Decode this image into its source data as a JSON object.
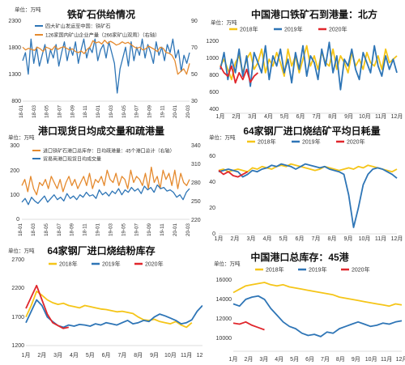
{
  "chart_data": [
    {
      "type": "line",
      "title": "铁矿石供给情况",
      "unit": "单位：万吨",
      "legend": [
        "四大矿山发运至中国：铁矿石",
        "126家国内矿山企业产量（266家矿山双周）（右轴）"
      ],
      "colors": [
        "#2e75b6",
        "#e58a2e"
      ],
      "y_left_ticks": [
        "2300",
        "1800",
        "1300",
        "800"
      ],
      "y_left_range": [
        800,
        2300
      ],
      "y_right_ticks": [
        "90",
        "70",
        "50",
        "30"
      ],
      "y_right_range": [
        30,
        90
      ],
      "x_ticks": [
        "18-01",
        "18-03",
        "18-05",
        "18-07",
        "18-09",
        "18-11",
        "19-01",
        "19-03",
        "19-05",
        "19-07",
        "19-09",
        "19-11",
        "20-01",
        "20-03"
      ],
      "series": [
        {
          "axis": "left",
          "values": [
            1550,
            1700,
            1300,
            1950,
            1500,
            1800,
            1450,
            1650,
            1850,
            1500,
            1750,
            1600,
            1850,
            1450,
            1700,
            1900,
            1550,
            1800,
            1650,
            1900,
            1500,
            1750,
            1950,
            1600,
            1800,
            1700,
            1950,
            1550,
            1750,
            1850,
            1600,
            1900,
            1700,
            1500,
            950,
            1400,
            1600,
            1800,
            1450,
            1900,
            1550,
            1800,
            1650,
            1950,
            1600,
            1850,
            1700,
            1500,
            1900,
            1650,
            1800,
            1550,
            1850,
            1700,
            1950,
            1600,
            1750,
            1350,
            1650,
            1500,
            1700
          ]
        },
        {
          "axis": "left",
          "values": [
            1800,
            1750,
            1780,
            1760,
            1740,
            1800,
            1770,
            1720,
            1800,
            1780,
            1750,
            1820,
            1760,
            1790,
            1810,
            1780,
            1750,
            1770,
            1720,
            1700,
            1730,
            1680,
            1760,
            1800,
            1920,
            1880,
            1900,
            1860,
            1930,
            1870,
            1910,
            1880,
            1840,
            1860,
            1900,
            1870,
            1890,
            1850,
            1810,
            1780,
            1800,
            1750,
            1770,
            1820,
            1790,
            1760,
            1720,
            1800,
            1780,
            1700,
            1690,
            1650,
            1550,
            1300,
            1350,
            1400,
            1300,
            1500
          ]
        }
      ]
    },
    {
      "type": "line",
      "title": "中国港口铁矿石到港量：北方",
      "unit": "单位：万吨",
      "legend": [
        "2018年",
        "2019年",
        "2020年"
      ],
      "colors": [
        "#f5c518",
        "#2e75b6",
        "#e0262c"
      ],
      "y_ticks": [
        "1200",
        "1000",
        "800",
        "600",
        "400"
      ],
      "y_range": [
        300,
        1450
      ],
      "x_ticks": [
        "1月",
        "2月",
        "3月",
        "4月",
        "5月",
        "6月",
        "7月",
        "8月",
        "9月",
        "10月",
        "11月",
        "12月"
      ],
      "series": [
        {
          "name": "2018年",
          "values": [
            1000,
            1100,
            950,
            800,
            1050,
            1150,
            900,
            1100,
            1200,
            950,
            1050,
            1250,
            900,
            1100,
            1000,
            1200,
            1050,
            850,
            1250,
            1000,
            1150,
            900,
            1100,
            1300,
            1000,
            1150,
            950,
            1200,
            1050,
            1000,
            1250,
            950,
            1150,
            1050,
            900,
            1200,
            1000,
            1100,
            950,
            1200,
            1050,
            1000,
            1150,
            950,
            1250,
            1050,
            1100,
            1150
          ]
        },
        {
          "name": "2019年",
          "values": [
            950,
            1200,
            800,
            1100,
            900,
            1250,
            850,
            1150,
            700,
            1200,
            1050,
            900,
            1300,
            800,
            1150,
            1000,
            1250,
            900,
            1100,
            750,
            1200,
            950,
            1300,
            850,
            1150,
            1050,
            800,
            1250,
            1000,
            1350,
            900,
            1150,
            650,
            1100,
            1000,
            1250,
            950,
            800,
            1200,
            1050,
            900,
            1300,
            1000,
            850,
            1150,
            950,
            1100,
            900
          ]
        },
        {
          "name": "2020年",
          "values": [
            1000,
            900,
            850,
            1000,
            750,
            900,
            800,
            950,
            760,
            850,
            900
          ]
        }
      ]
    },
    {
      "type": "line",
      "title": "港口现货日均成交量和疏港量",
      "unit": "单位：万吨",
      "legend": [
        "进口铁矿石港口总库存：日均疏港量：45个港口总计（右轴）",
        "贸易商港口现货日均成交量"
      ],
      "colors": [
        "#e58a2e",
        "#2e75b6"
      ],
      "y_left_ticks": [
        "300",
        "200",
        "100",
        "0"
      ],
      "y_left_range": [
        0,
        300
      ],
      "y_right_ticks": [
        "340",
        "310",
        "280",
        "250",
        "220"
      ],
      "y_right_range": [
        220,
        340
      ],
      "x_ticks": [
        "18-01",
        "18-03",
        "18-05",
        "18-07",
        "18-09",
        "18-11",
        "19-01",
        "19-03",
        "19-05",
        "19-07",
        "19-09",
        "19-11",
        "20-01",
        "20-03"
      ],
      "series": [
        {
          "axis": "right",
          "values": [
            275,
            285,
            265,
            290,
            270,
            260,
            280,
            275,
            285,
            270,
            290,
            280,
            270,
            285,
            265,
            280,
            290,
            275,
            285,
            270,
            280,
            290,
            275,
            295,
            270,
            285,
            280,
            290,
            275,
            300,
            285,
            280,
            295,
            275,
            290,
            285,
            270,
            300,
            280,
            290,
            285,
            275,
            295,
            270,
            305,
            280,
            290,
            270,
            300,
            285,
            295,
            275,
            300,
            270,
            295,
            280,
            275,
            285
          ]
        },
        {
          "axis": "left",
          "values": [
            70,
            85,
            60,
            90,
            75,
            65,
            80,
            95,
            70,
            85,
            100,
            80,
            90,
            75,
            105,
            85,
            95,
            80,
            100,
            90,
            110,
            95,
            100,
            85,
            120,
            100,
            110,
            95,
            115,
            105,
            125,
            100,
            120,
            110,
            130,
            115,
            125,
            105,
            135,
            120,
            130,
            110,
            140,
            125,
            130,
            115,
            120,
            110,
            90,
            100,
            80,
            110,
            125
          ]
        }
      ]
    },
    {
      "type": "line",
      "title": "64家钢厂进口烧结矿平均日耗量",
      "unit": "单位：万吨",
      "legend": [
        "2018年",
        "2019年",
        "2020年"
      ],
      "colors": [
        "#f5c518",
        "#2e75b6",
        "#e0262c"
      ],
      "y_ticks": [
        "60",
        "40",
        "20",
        "0"
      ],
      "y_range": [
        0,
        60
      ],
      "x_ticks": [
        "1月",
        "2月",
        "3月",
        "4月",
        "5月",
        "6月",
        "7月",
        "8月",
        "9月",
        "10月",
        "11月",
        "12月"
      ],
      "series": [
        {
          "name": "2018年",
          "values": [
            49,
            50,
            48,
            49,
            50,
            49,
            48,
            51,
            50,
            52,
            51,
            50,
            52,
            53,
            52,
            54,
            53,
            52,
            51,
            50,
            49,
            50,
            52,
            51,
            50,
            49,
            50,
            51,
            50,
            52,
            51,
            53,
            52,
            51,
            50,
            49,
            48,
            50
          ]
        },
        {
          "name": "2019年",
          "values": [
            48,
            49,
            50,
            49,
            48,
            44,
            46,
            49,
            48,
            50,
            51,
            53,
            52,
            54,
            53,
            52,
            50,
            52,
            54,
            53,
            52,
            51,
            52,
            50,
            49,
            48,
            46,
            30,
            5,
            20,
            38,
            46,
            50,
            51,
            50,
            48,
            46,
            43
          ]
        },
        {
          "name": "2020年",
          "values": [
            49,
            46,
            48,
            45,
            44,
            46,
            48
          ]
        }
      ]
    },
    {
      "type": "line",
      "title": "64家钢厂进口烧结粉库存",
      "unit": "单位：万吨",
      "legend": [
        "2018年",
        "2019年",
        "2020年"
      ],
      "colors": [
        "#f5c518",
        "#2e75b6",
        "#e0262c"
      ],
      "y_ticks": [
        "2700",
        "2200",
        "1700",
        "1200"
      ],
      "y_range": [
        1200,
        2700
      ],
      "x_ticks": [
        "1月",
        "2月",
        "3月",
        "4月",
        "5月",
        "6月",
        "7月",
        "8月",
        "9月",
        "10月",
        "11月",
        "12月"
      ],
      "series": [
        {
          "name": "2018年",
          "values": [
            1700,
            1900,
            2150,
            2080,
            2000,
            1950,
            1920,
            1940,
            1900,
            1880,
            1860,
            1900,
            1880,
            1860,
            1840,
            1830,
            1810,
            1790,
            1800,
            1780,
            1760,
            1700,
            1650,
            1640,
            1660,
            1620,
            1600,
            1580,
            1620,
            1560,
            1520,
            1600
          ]
        },
        {
          "name": "2019年",
          "values": [
            1600,
            1800,
            2000,
            1900,
            1700,
            1620,
            1550,
            1520,
            1560,
            1540,
            1570,
            1560,
            1540,
            1580,
            1560,
            1600,
            1580,
            1560,
            1600,
            1640,
            1580,
            1600,
            1640,
            1620,
            1700,
            1750,
            1720,
            1680,
            1640,
            1580,
            1600,
            1650,
            1800,
            1900
          ]
        },
        {
          "name": "2020年",
          "values": [
            1850,
            2050,
            2250,
            2000,
            1750,
            1600,
            1550,
            1500,
            1520
          ]
        }
      ]
    },
    {
      "type": "line",
      "title": "中国港口总库存：45港",
      "unit": "单位：万吨",
      "legend": [
        "2018年",
        "2019年",
        "2020年"
      ],
      "colors": [
        "#f5c518",
        "#2e75b6",
        "#e0262c"
      ],
      "y_ticks": [
        "16000",
        "14000",
        "12000",
        "10000"
      ],
      "y_range": [
        10000,
        16600
      ],
      "x_ticks": [
        "1月",
        "2月",
        "3月",
        "4月",
        "5月",
        "6月",
        "7月",
        "8月",
        "9月",
        "10月",
        "11月",
        "12月"
      ],
      "series": [
        {
          "name": "2018年",
          "values": [
            15200,
            15500,
            15800,
            15900,
            16000,
            16100,
            15900,
            15800,
            15900,
            15700,
            15600,
            15500,
            15400,
            15300,
            15200,
            15100,
            15000,
            14800,
            14700,
            14600,
            14500,
            14400,
            14300,
            14200,
            14100,
            14000,
            14200,
            14100
          ]
        },
        {
          "name": "2019年",
          "values": [
            14200,
            14000,
            14600,
            14800,
            14900,
            14600,
            13800,
            13200,
            12600,
            12200,
            12000,
            11600,
            11400,
            11500,
            11300,
            11700,
            11600,
            12000,
            12200,
            12400,
            12600,
            12400,
            12200,
            12300,
            12500,
            12400,
            12600,
            12700
          ]
        },
        {
          "name": "2020年",
          "values": [
            12500,
            12400,
            12600,
            12300,
            12100,
            11900
          ]
        }
      ]
    }
  ]
}
